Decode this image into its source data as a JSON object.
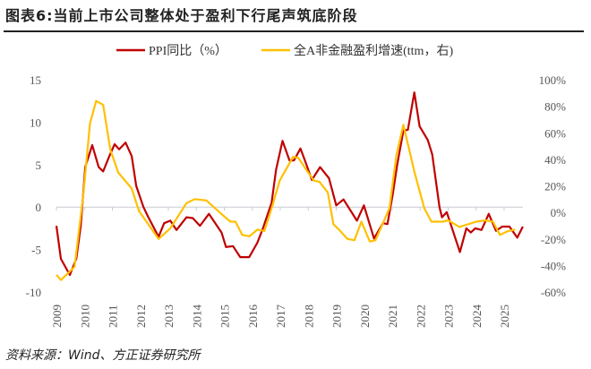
{
  "title": "图表6:当前上市公司整体处于盈利下行尾声筑底阶段",
  "source": "资料来源：Wind、方正证券研究所",
  "chart_data": {
    "type": "line",
    "title": "图表6:当前上市公司整体处于盈利下行尾声筑底阶段",
    "legend_position": "top",
    "grid": false,
    "x_ticks": [
      "2009",
      "2010",
      "2011",
      "2012",
      "2013",
      "2014",
      "2015",
      "2016",
      "2017",
      "2018",
      "2019",
      "2020",
      "2021",
      "2022",
      "2023",
      "2024",
      "2025"
    ],
    "xlim": [
      2009,
      2025.7
    ],
    "y_left": {
      "ylim": [
        -10,
        15
      ],
      "ticks": [
        "15",
        "10",
        "5",
        "0",
        "-5",
        "-10"
      ],
      "tick_values": [
        15,
        10,
        5,
        0,
        -5,
        -10
      ]
    },
    "y_right": {
      "ylim": [
        -60,
        100
      ],
      "ticks": [
        "100%",
        "80%",
        "60%",
        "40%",
        "20%",
        "0%",
        "-20%",
        "-40%",
        "-60%"
      ],
      "tick_values": [
        100,
        80,
        60,
        40,
        20,
        0,
        -20,
        -40,
        -60
      ]
    },
    "series": [
      {
        "name": "PPI同比（%）",
        "axis": "left",
        "color": "#C00000",
        "points": [
          [
            2009.0,
            -2.2
          ],
          [
            2009.16,
            -6.1
          ],
          [
            2009.48,
            -8.0
          ],
          [
            2009.71,
            -6.1
          ],
          [
            2009.87,
            -2.2
          ],
          [
            2010.03,
            4.7
          ],
          [
            2010.28,
            7.3
          ],
          [
            2010.51,
            4.7
          ],
          [
            2010.67,
            4.2
          ],
          [
            2010.89,
            6.0
          ],
          [
            2011.08,
            7.4
          ],
          [
            2011.24,
            6.8
          ],
          [
            2011.47,
            7.6
          ],
          [
            2011.69,
            6.0
          ],
          [
            2011.85,
            2.5
          ],
          [
            2012.11,
            0
          ],
          [
            2012.27,
            -1.1
          ],
          [
            2012.65,
            -3.5
          ],
          [
            2012.85,
            -1.9
          ],
          [
            2013.07,
            -1.6
          ],
          [
            2013.29,
            -2.7
          ],
          [
            2013.65,
            -1.2
          ],
          [
            2013.87,
            -1.3
          ],
          [
            2014.13,
            -2.2
          ],
          [
            2014.45,
            -0.8
          ],
          [
            2014.9,
            -3.0
          ],
          [
            2015.06,
            -4.7
          ],
          [
            2015.31,
            -4.6
          ],
          [
            2015.57,
            -5.9
          ],
          [
            2015.89,
            -5.9
          ],
          [
            2016.18,
            -4.2
          ],
          [
            2016.37,
            -2.6
          ],
          [
            2016.69,
            0.5
          ],
          [
            2016.85,
            4.4
          ],
          [
            2017.08,
            7.8
          ],
          [
            2017.33,
            5.5
          ],
          [
            2017.49,
            5.5
          ],
          [
            2017.72,
            6.9
          ],
          [
            2017.88,
            5.5
          ],
          [
            2018.13,
            3.2
          ],
          [
            2018.42,
            4.7
          ],
          [
            2018.74,
            3.4
          ],
          [
            2019.0,
            0.2
          ],
          [
            2019.26,
            0.9
          ],
          [
            2019.74,
            -1.6
          ],
          [
            2019.99,
            0.2
          ],
          [
            2020.35,
            -3.7
          ],
          [
            2020.67,
            -1.9
          ],
          [
            2020.83,
            -2.0
          ],
          [
            2021.02,
            1.5
          ],
          [
            2021.18,
            5.0
          ],
          [
            2021.4,
            9.0
          ],
          [
            2021.56,
            9.1
          ],
          [
            2021.79,
            13.5
          ],
          [
            2021.98,
            9.5
          ],
          [
            2022.27,
            7.9
          ],
          [
            2022.43,
            6.2
          ],
          [
            2022.69,
            0
          ],
          [
            2022.78,
            -1.2
          ],
          [
            2022.95,
            -0.6
          ],
          [
            2023.42,
            -5.3
          ],
          [
            2023.65,
            -2.5
          ],
          [
            2023.81,
            -3.0
          ],
          [
            2023.97,
            -2.5
          ],
          [
            2024.19,
            -2.7
          ],
          [
            2024.45,
            -0.8
          ],
          [
            2024.71,
            -2.8
          ],
          [
            2024.93,
            -2.3
          ],
          [
            2025.19,
            -2.3
          ],
          [
            2025.47,
            -3.6
          ],
          [
            2025.67,
            -2.3
          ]
        ]
      },
      {
        "name": "全A非金融盈利增速(ttm，右)",
        "axis": "right",
        "color": "#FFC000",
        "points": [
          [
            2009.0,
            -47
          ],
          [
            2009.16,
            -51
          ],
          [
            2009.65,
            -41
          ],
          [
            2009.96,
            13
          ],
          [
            2010.2,
            67
          ],
          [
            2010.42,
            84
          ],
          [
            2010.67,
            81
          ],
          [
            2010.93,
            47
          ],
          [
            2011.21,
            30
          ],
          [
            2011.69,
            18
          ],
          [
            2011.95,
            1
          ],
          [
            2012.65,
            -20
          ],
          [
            2013.07,
            -12
          ],
          [
            2013.65,
            7
          ],
          [
            2013.94,
            10
          ],
          [
            2014.36,
            9
          ],
          [
            2014.94,
            -2
          ],
          [
            2015.22,
            -7
          ],
          [
            2015.4,
            -7
          ],
          [
            2015.64,
            -17
          ],
          [
            2015.9,
            -18
          ],
          [
            2016.18,
            -13
          ],
          [
            2016.43,
            -14
          ],
          [
            2016.69,
            3
          ],
          [
            2016.98,
            24
          ],
          [
            2017.46,
            42
          ],
          [
            2017.65,
            41
          ],
          [
            2017.9,
            33
          ],
          [
            2018.2,
            24
          ],
          [
            2018.4,
            23
          ],
          [
            2018.7,
            15
          ],
          [
            2018.9,
            -9
          ],
          [
            2019.1,
            -13
          ],
          [
            2019.4,
            -20
          ],
          [
            2019.65,
            -21
          ],
          [
            2019.9,
            -7
          ],
          [
            2020.2,
            -22
          ],
          [
            2020.4,
            -21
          ],
          [
            2020.9,
            3
          ],
          [
            2021.15,
            43
          ],
          [
            2021.4,
            66
          ],
          [
            2021.8,
            30
          ],
          [
            2022.15,
            3
          ],
          [
            2022.4,
            -7
          ],
          [
            2022.8,
            -7
          ],
          [
            2023.0,
            -6
          ],
          [
            2023.4,
            -11
          ],
          [
            2024.0,
            -7
          ],
          [
            2024.35,
            -6
          ],
          [
            2024.6,
            -7
          ],
          [
            2024.85,
            -17
          ],
          [
            2025.15,
            -14
          ],
          [
            2025.4,
            -13
          ]
        ]
      }
    ]
  }
}
